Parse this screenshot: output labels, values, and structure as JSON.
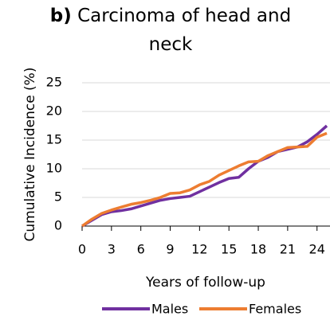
{
  "chart_data": {
    "type": "line",
    "title_prefix": "b)",
    "title": "Carcinoma of head and neck",
    "y_label": "Cumulative Incidence (%)",
    "x_label": "Years of follow-up",
    "x": [
      0,
      1,
      2,
      3,
      4,
      5,
      6,
      7,
      8,
      9,
      10,
      11,
      12,
      13,
      14,
      15,
      16,
      17,
      18,
      19,
      20,
      21,
      22,
      23,
      24,
      25
    ],
    "series": [
      {
        "name": "Males",
        "color": "#7030a0",
        "values": [
          0,
          1,
          2,
          2.5,
          2.7,
          3,
          3.5,
          4,
          4.5,
          4.8,
          5,
          5.2,
          6,
          6.8,
          7.6,
          8.3,
          8.5,
          10,
          11.3,
          12,
          13,
          13.4,
          13.8,
          14.7,
          16,
          17.5
        ]
      },
      {
        "name": "Females",
        "color": "#ed7d31",
        "values": [
          0,
          1.2,
          2.2,
          2.8,
          3.3,
          3.8,
          4.1,
          4.5,
          5,
          5.7,
          5.8,
          6.3,
          7.2,
          7.8,
          8.9,
          9.7,
          10.5,
          11.2,
          11.3,
          12.3,
          13,
          13.7,
          13.8,
          13.9,
          15.5,
          16.2
        ]
      }
    ],
    "xlim": [
      0,
      25
    ],
    "xticks": [
      0,
      3,
      6,
      9,
      12,
      15,
      18,
      21,
      24
    ],
    "ylim": [
      0,
      25
    ],
    "yticks": [
      0,
      5,
      10,
      15,
      20,
      25
    ],
    "grid": true
  }
}
